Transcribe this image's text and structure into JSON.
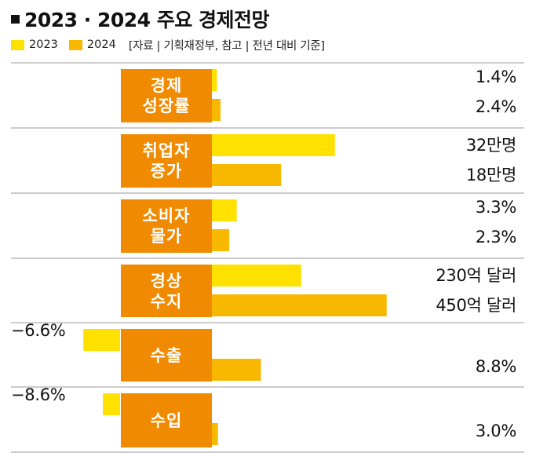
{
  "title": "2023 · 2024 주요 경제전망",
  "legend": {
    "items": [
      {
        "label": "2023",
        "color": "#ffe100"
      },
      {
        "label": "2024",
        "color": "#f9b800"
      }
    ],
    "note": "[자료 | 기획재정부, 참고 | 전년 대비 기준]"
  },
  "colors": {
    "y2023": "#ffe100",
    "y2024": "#f9b800",
    "label_box": "#f08a00",
    "divider": "#9a9a9a"
  },
  "chart_data": {
    "type": "bar",
    "orientation": "horizontal",
    "series": [
      {
        "name": "2023",
        "color": "#ffe100"
      },
      {
        "name": "2024",
        "color": "#f9b800"
      }
    ],
    "categories": [
      {
        "label_lines": [
          "경제",
          "성장률"
        ],
        "unit": "%",
        "values": [
          1.4,
          2.4
        ],
        "value_labels": [
          "1.4%",
          "2.4%"
        ]
      },
      {
        "label_lines": [
          "취업자",
          "증가"
        ],
        "unit": "만명",
        "values": [
          32,
          18
        ],
        "value_labels": [
          "32만명",
          "18만명"
        ]
      },
      {
        "label_lines": [
          "소비자",
          "물가"
        ],
        "unit": "%",
        "values": [
          3.3,
          2.3
        ],
        "value_labels": [
          "3.3%",
          "2.3%"
        ]
      },
      {
        "label_lines": [
          "경상",
          "수지"
        ],
        "unit": "억 달러",
        "values": [
          230,
          450
        ],
        "value_labels": [
          "230억 달러",
          "450억 달러"
        ]
      },
      {
        "label_lines": [
          "수출"
        ],
        "unit": "%",
        "values": [
          -6.6,
          8.8
        ],
        "value_labels": [
          "−6.6%",
          "8.8%"
        ]
      },
      {
        "label_lines": [
          "수입"
        ],
        "unit": "%",
        "values": [
          -8.6,
          3.0
        ],
        "value_labels": [
          "−8.6%",
          "3.0%"
        ]
      }
    ]
  }
}
